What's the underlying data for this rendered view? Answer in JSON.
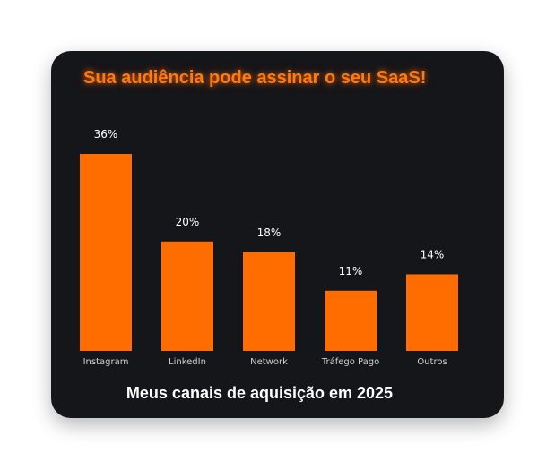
{
  "headline": "Sua audiência pode assinar o seu SaaS!",
  "colors": {
    "card_background": "#15161a",
    "bar": "#ff6d00",
    "headline": "#ff7a12",
    "value_label": "#ffffff",
    "category_label": "#d0d0d4"
  },
  "chart_data": {
    "type": "bar",
    "title": "Meus canais de aquisição em 2025",
    "xlabel": "",
    "ylabel": "",
    "ylim": [
      0,
      36
    ],
    "grid": false,
    "categories": [
      "Instagram",
      "LinkedIn",
      "Network",
      "Tráfego Pago",
      "Outros"
    ],
    "values": [
      36,
      20,
      18,
      11,
      14
    ],
    "value_labels": [
      "36%",
      "20%",
      "18%",
      "11%",
      "14%"
    ]
  }
}
